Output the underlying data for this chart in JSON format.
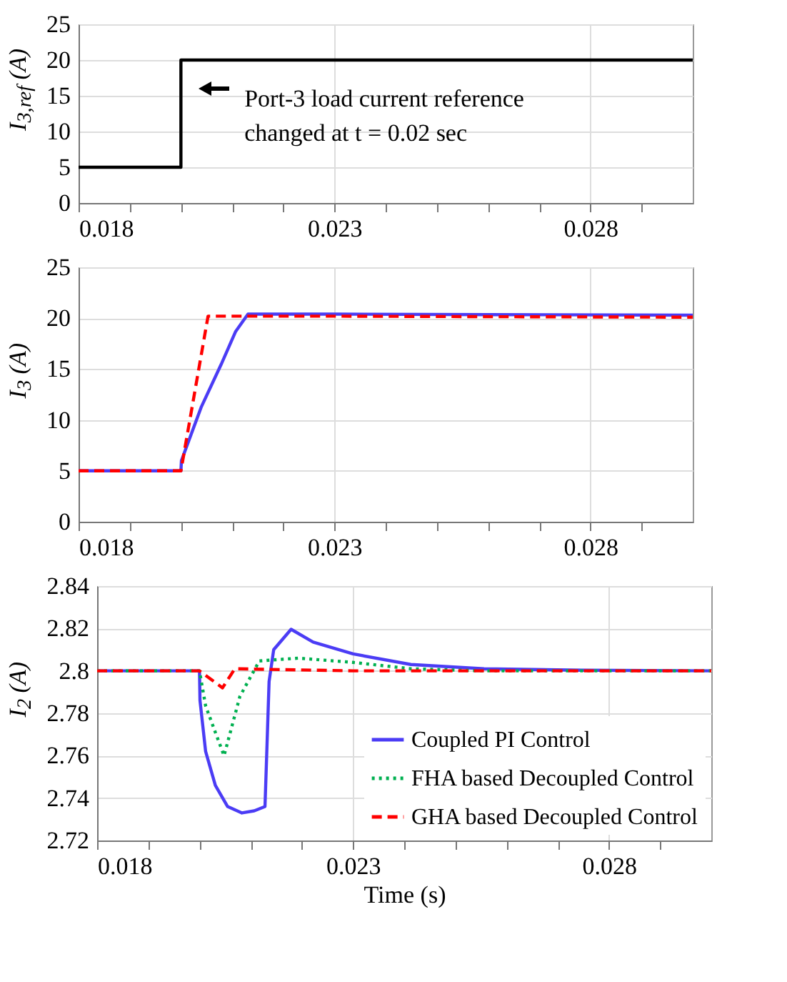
{
  "chart_data": [
    {
      "type": "step",
      "ylabel": "I$_{3,ref}$ (A)",
      "x": [
        0.018,
        0.02,
        0.03
      ],
      "series": [
        {
          "color": "#000000",
          "values": [
            5,
            20,
            20
          ],
          "line_style": "solid"
        }
      ],
      "xlim": [
        0.018,
        0.03
      ],
      "ylim": [
        0,
        25
      ],
      "yticks": [
        0,
        5,
        10,
        15,
        20,
        25
      ],
      "xticks": [
        0.018,
        {
          "value": 0.019,
          "label": null
        },
        {
          "value": 0.02,
          "label": null
        },
        {
          "value": 0.021,
          "label": null
        },
        {
          "value": 0.022,
          "label": null
        },
        0.023,
        {
          "value": 0.024,
          "label": null
        },
        {
          "value": 0.025,
          "label": null
        },
        {
          "value": 0.026,
          "label": null
        },
        {
          "value": 0.027,
          "label": null
        },
        0.028,
        {
          "value": 0.029,
          "label": null
        }
      ],
      "grid": true,
      "legend": false,
      "marker": "none",
      "annotations": [
        "Port-3 load current reference\nchanged at t = 0.02 sec"
      ]
    },
    {
      "type": "line",
      "ylabel": "I$_{3}$ (A)",
      "series": [
        {
          "name": null,
          "color": "#4b3cf5",
          "line_style": "solid",
          "x": [
            0.018,
            0.02,
            0.02001,
            0.0204,
            0.02079,
            0.02107,
            0.02131,
            0.023,
            0.026,
            0.03
          ],
          "values": [
            5,
            5,
            6,
            11.3,
            15.5,
            18.7,
            20.4,
            20.4,
            20.35,
            20.3
          ]
        },
        {
          "name": null,
          "color": "#ff0000",
          "line_style": "dashed",
          "x": [
            0.018,
            0.02,
            0.02053,
            0.023,
            0.026,
            0.03
          ],
          "values": [
            5,
            5,
            20.2,
            20.2,
            20.15,
            20.1
          ]
        }
      ],
      "xlim": [
        0.018,
        0.03
      ],
      "ylim": [
        0,
        25
      ],
      "yticks": [
        0,
        5,
        10,
        15,
        20,
        25
      ],
      "xticks": [
        0.018,
        {
          "value": 0.019,
          "label": null
        },
        {
          "value": 0.02,
          "label": null
        },
        {
          "value": 0.021,
          "label": null
        },
        {
          "value": 0.022,
          "label": null
        },
        0.023,
        {
          "value": 0.024,
          "label": null
        },
        {
          "value": 0.025,
          "label": null
        },
        {
          "value": 0.026,
          "label": null
        },
        {
          "value": 0.027,
          "label": null
        },
        0.028,
        {
          "value": 0.029,
          "label": null
        }
      ],
      "grid": true,
      "legend": false,
      "marker": "none"
    },
    {
      "type": "line",
      "ylabel": "I$_{2}$ (A)",
      "xlabel": "Time (s)",
      "series": [
        {
          "name": "Coupled PI Control",
          "color": "#4b3cf5",
          "line_style": "solid",
          "x": [
            0.018,
            0.02,
            0.02001,
            0.02012,
            0.02031,
            0.02055,
            0.02083,
            0.02107,
            0.02128,
            0.02136,
            0.02145,
            0.02179,
            0.02222,
            0.023,
            0.02413,
            0.02556,
            0.02747,
            0.03
          ],
          "values": [
            2.8,
            2.8,
            2.786,
            2.762,
            2.746,
            2.736,
            2.733,
            2.734,
            2.736,
            2.795,
            2.81,
            2.8196,
            2.8136,
            2.808,
            2.803,
            2.801,
            2.8003,
            2.8
          ]
        },
        {
          "name": "FHA based Decoupled Control",
          "color": "#00b050",
          "line_style": "dotted",
          "x": [
            0.018,
            0.02,
            0.02012,
            0.02031,
            0.02048,
            0.02079,
            0.02117,
            0.02193,
            0.023,
            0.02413,
            0.02556,
            0.03
          ],
          "values": [
            2.8,
            2.8,
            2.7835,
            2.771,
            2.76,
            2.788,
            2.8047,
            2.806,
            2.804,
            2.801,
            2.8,
            2.8
          ]
        },
        {
          "name": "GHA based Decoupled Control",
          "color": "#ff0000",
          "line_style": "dashed",
          "x": [
            0.018,
            0.02,
            0.02045,
            0.02069,
            0.023,
            0.03
          ],
          "values": [
            2.8,
            2.8,
            2.792,
            2.801,
            2.8,
            2.8
          ]
        }
      ],
      "xlim": [
        0.018,
        0.03
      ],
      "ylim": [
        2.72,
        2.84
      ],
      "yticks": [
        2.72,
        2.74,
        2.76,
        2.78,
        2.8,
        2.82,
        2.84
      ],
      "xticks": [
        0.018,
        {
          "value": 0.019,
          "label": null
        },
        {
          "value": 0.02,
          "label": null
        },
        {
          "value": 0.021,
          "label": null
        },
        {
          "value": 0.022,
          "label": null
        },
        0.023,
        {
          "value": 0.024,
          "label": null
        },
        {
          "value": 0.025,
          "label": null
        },
        {
          "value": 0.026,
          "label": null
        },
        {
          "value": 0.027,
          "label": null
        },
        0.028,
        {
          "value": 0.029,
          "label": null
        }
      ],
      "grid": true,
      "legend": "bottom right",
      "marker": "none"
    }
  ]
}
